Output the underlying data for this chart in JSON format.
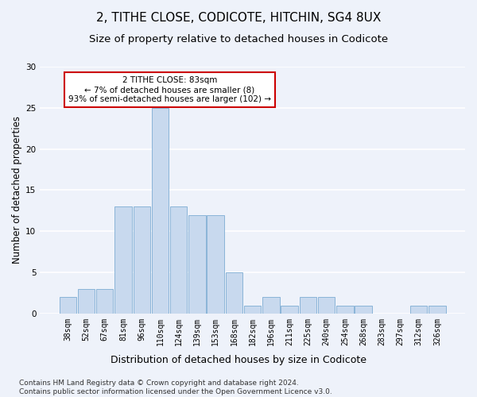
{
  "title1": "2, TITHE CLOSE, CODICOTE, HITCHIN, SG4 8UX",
  "title2": "Size of property relative to detached houses in Codicote",
  "xlabel": "Distribution of detached houses by size in Codicote",
  "ylabel": "Number of detached properties",
  "categories": [
    "38sqm",
    "52sqm",
    "67sqm",
    "81sqm",
    "96sqm",
    "110sqm",
    "124sqm",
    "139sqm",
    "153sqm",
    "168sqm",
    "182sqm",
    "196sqm",
    "211sqm",
    "225sqm",
    "240sqm",
    "254sqm",
    "268sqm",
    "283sqm",
    "297sqm",
    "312sqm",
    "326sqm"
  ],
  "values": [
    2,
    3,
    3,
    13,
    13,
    25,
    13,
    12,
    12,
    5,
    1,
    2,
    1,
    2,
    2,
    1,
    1,
    0,
    0,
    1,
    1
  ],
  "bar_color_normal": "#c8d9ee",
  "bar_edge_color": "#8ab4d8",
  "annotation_text": "2 TITHE CLOSE: 83sqm\n← 7% of detached houses are smaller (8)\n93% of semi-detached houses are larger (102) →",
  "annotation_box_color": "#ffffff",
  "annotation_box_edge": "#cc0000",
  "footer_text": "Contains HM Land Registry data © Crown copyright and database right 2024.\nContains public sector information licensed under the Open Government Licence v3.0.",
  "ylim": [
    0,
    30
  ],
  "yticks": [
    0,
    5,
    10,
    15,
    20,
    25,
    30
  ],
  "background_color": "#eef2fa",
  "grid_color": "#ffffff",
  "title1_fontsize": 11,
  "title2_fontsize": 9.5,
  "ylabel_fontsize": 8.5,
  "xlabel_fontsize": 9,
  "tick_fontsize": 7,
  "annotation_fontsize": 7.5,
  "footer_fontsize": 6.5
}
